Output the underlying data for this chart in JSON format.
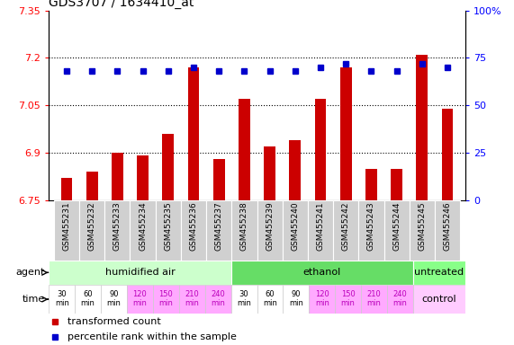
{
  "title": "GDS3707 / 1634410_at",
  "samples": [
    "GSM455231",
    "GSM455232",
    "GSM455233",
    "GSM455234",
    "GSM455235",
    "GSM455236",
    "GSM455237",
    "GSM455238",
    "GSM455239",
    "GSM455240",
    "GSM455241",
    "GSM455242",
    "GSM455243",
    "GSM455244",
    "GSM455245",
    "GSM455246"
  ],
  "bar_values": [
    6.82,
    6.84,
    6.9,
    6.89,
    6.96,
    7.17,
    6.88,
    7.07,
    6.92,
    6.94,
    7.07,
    7.17,
    6.85,
    6.85,
    7.21,
    7.04
  ],
  "dot_values": [
    68,
    68,
    68,
    68,
    68,
    70,
    68,
    68,
    68,
    68,
    70,
    72,
    68,
    68,
    72,
    70
  ],
  "ylim_left": [
    6.75,
    7.35
  ],
  "ylim_right": [
    0,
    100
  ],
  "yticks_left": [
    6.75,
    6.9,
    7.05,
    7.2,
    7.35
  ],
  "yticks_right": [
    0,
    25,
    50,
    75,
    100
  ],
  "ytick_labels_left": [
    "6.75",
    "6.9",
    "7.05",
    "7.2",
    "7.35"
  ],
  "ytick_labels_right": [
    "0",
    "25",
    "50",
    "75",
    "100%"
  ],
  "hgrid_values": [
    6.9,
    7.05,
    7.2
  ],
  "bar_color": "#cc0000",
  "dot_color": "#0000cc",
  "bar_bottom": 6.75,
  "agent_groups": [
    {
      "label": "humidified air",
      "start": 0,
      "end": 7,
      "color": "#ccffcc"
    },
    {
      "label": "ethanol",
      "start": 7,
      "end": 14,
      "color": "#66dd66"
    },
    {
      "label": "untreated",
      "start": 14,
      "end": 16,
      "color": "#88ff88"
    }
  ],
  "time_labels": [
    "30\nmin",
    "60\nmin",
    "90\nmin",
    "120\nmin",
    "150\nmin",
    "210\nmin",
    "240\nmin",
    "30\nmin",
    "60\nmin",
    "90\nmin",
    "120\nmin",
    "150\nmin",
    "210\nmin",
    "240\nmin"
  ],
  "time_label_colors": [
    "#000000",
    "#000000",
    "#000000",
    "#bb00bb",
    "#bb00bb",
    "#bb00bb",
    "#bb00bb",
    "#000000",
    "#000000",
    "#000000",
    "#bb00bb",
    "#bb00bb",
    "#bb00bb",
    "#bb00bb"
  ],
  "time_bg_colors": [
    "#ffffff",
    "#ffffff",
    "#ffffff",
    "#ffaaff",
    "#ffaaff",
    "#ffaaff",
    "#ffaaff",
    "#ffffff",
    "#ffffff",
    "#ffffff",
    "#ffaaff",
    "#ffaaff",
    "#ffaaff",
    "#ffaaff"
  ],
  "control_label": "control",
  "control_bg": "#ffccff",
  "agent_label": "agent",
  "time_label": "time",
  "legend_bar": "transformed count",
  "legend_dot": "percentile rank within the sample",
  "bar_width": 0.45
}
